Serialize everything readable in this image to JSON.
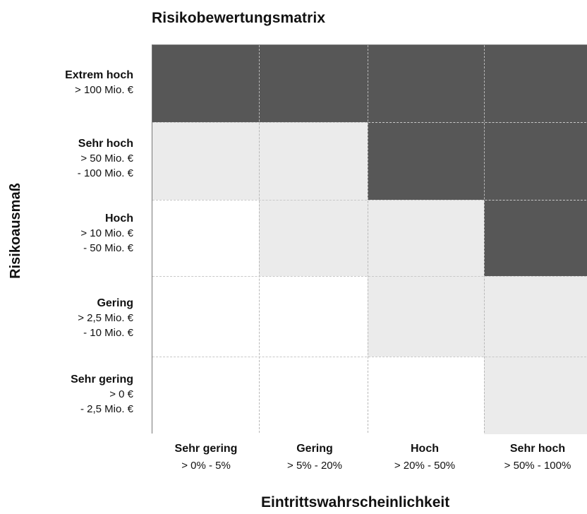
{
  "chart_data": {
    "type": "heatmap",
    "title": "Risikobewertungsmatrix",
    "ylabel": "Risikoausmaß",
    "xlabel": "Eintrittswahrscheinlichkeit",
    "columns": [
      {
        "name": "Sehr gering",
        "range": "> 0% - 5%"
      },
      {
        "name": "Gering",
        "range": "> 5% - 20%"
      },
      {
        "name": "Hoch",
        "range": "> 20% - 50%"
      },
      {
        "name": "Sehr hoch",
        "range": "> 50% - 100%"
      }
    ],
    "rows": [
      {
        "name": "Extrem hoch",
        "range_lines": [
          "> 100 Mio. €"
        ]
      },
      {
        "name": "Sehr hoch",
        "range_lines": [
          "> 50 Mio. €",
          "- 100 Mio. €"
        ]
      },
      {
        "name": "Hoch",
        "range_lines": [
          "> 10 Mio. €",
          "- 50 Mio. €"
        ]
      },
      {
        "name": "Gering",
        "range_lines": [
          "> 2,5 Mio. €",
          "- 10 Mio. €"
        ]
      },
      {
        "name": "Sehr gering",
        "range_lines": [
          "> 0 €",
          "- 2,5 Mio. €"
        ]
      }
    ],
    "levels": [
      [
        2,
        2,
        2,
        2
      ],
      [
        1,
        1,
        2,
        2
      ],
      [
        0,
        1,
        1,
        2
      ],
      [
        0,
        0,
        1,
        1
      ],
      [
        0,
        0,
        0,
        1
      ]
    ],
    "level_colors": [
      "#ffffff",
      "#ebebeb",
      "#575757"
    ]
  }
}
